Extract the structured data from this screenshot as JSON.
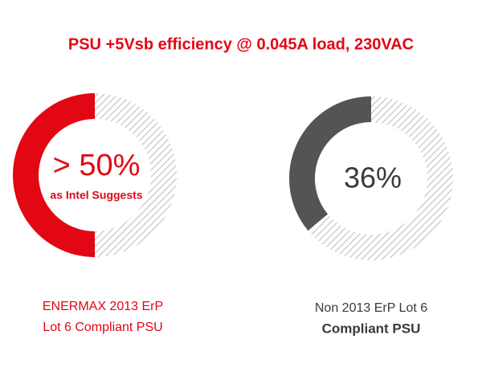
{
  "title": "PSU +5Vsb efficiency @ 0.045A load, 230VAC",
  "chart_data": [
    {
      "type": "donut",
      "values": [
        50,
        50
      ],
      "value_labels": [
        "> 50%",
        null
      ],
      "colors": [
        "#e30613",
        "#c4c4c4"
      ],
      "hatched": [
        false,
        true
      ],
      "note": "as Intel Suggests",
      "label_color": "#e30613",
      "caption": [
        "ENERMAX 2013 ErP",
        "Lot 6 Compliant PSU"
      ],
      "caption_color": "#e30613"
    },
    {
      "type": "donut",
      "values": [
        36,
        64
      ],
      "value_labels": [
        "36%",
        null
      ],
      "colors": [
        "#555353",
        "#c4c4c4"
      ],
      "hatched": [
        false,
        true
      ],
      "label_color": "#3a3a3a",
      "caption": [
        "Non 2013 ErP Lot 6",
        "Compliant PSU"
      ],
      "caption_color": "#3a3a3a"
    }
  ]
}
